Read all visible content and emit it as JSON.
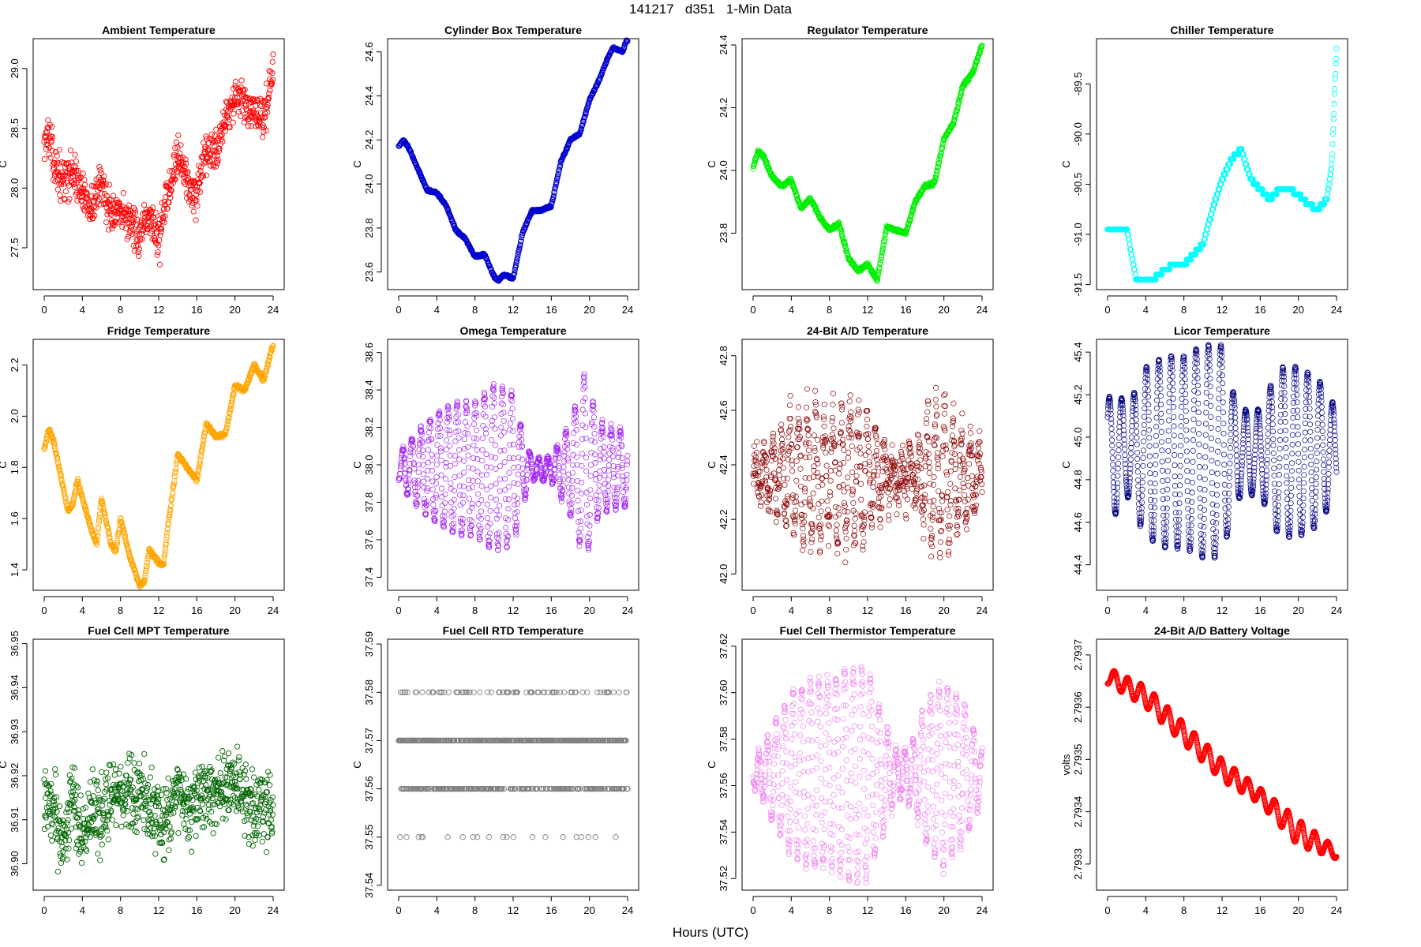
{
  "figure": {
    "title": "141217   d351   1-Min Data",
    "xlabel": "Hours (UTC)"
  },
  "chart_data": [
    {
      "id": "ambient",
      "type": "scatter",
      "title": "Ambient Temperature",
      "ylabel": "C",
      "color": "#ff0000",
      "xlim": [
        0,
        24
      ],
      "xticks": [
        0,
        4,
        8,
        12,
        16,
        20,
        24
      ],
      "xtick_labels": [
        "0",
        "4",
        "8",
        "12",
        "16",
        "20",
        "24"
      ],
      "ylim": [
        27.15,
        29.25
      ],
      "yticks": [
        27.5,
        28.0,
        28.5,
        29.0
      ],
      "ytick_labels": [
        "27.5",
        "28.0",
        "28.5",
        "29.0"
      ],
      "trend": {
        "x": [
          0,
          0.5,
          1,
          2,
          3,
          4,
          5,
          6,
          7,
          8,
          9,
          10,
          11,
          12,
          13,
          14,
          15,
          16,
          17,
          18,
          19,
          20,
          21,
          22,
          23,
          24
        ],
        "y": [
          28.4,
          28.45,
          28.2,
          28.05,
          28.15,
          27.95,
          27.85,
          28.05,
          27.8,
          27.75,
          27.75,
          27.55,
          27.8,
          27.55,
          28.0,
          28.3,
          28.05,
          27.9,
          28.3,
          28.3,
          28.6,
          28.75,
          28.7,
          28.6,
          28.6,
          28.95
        ]
      },
      "noise": 0.12,
      "npts": 720,
      "marker": "circle"
    },
    {
      "id": "cylbox",
      "type": "scatter",
      "title": "Cylinder Box Temperature",
      "ylabel": "C",
      "color": "#0000cd",
      "xlim": [
        0,
        24
      ],
      "xticks": [
        0,
        4,
        8,
        12,
        16,
        20,
        24
      ],
      "xtick_labels": [
        "0",
        "4",
        "8",
        "12",
        "16",
        "20",
        "24"
      ],
      "ylim": [
        23.52,
        24.66
      ],
      "yticks": [
        23.6,
        23.8,
        24.0,
        24.2,
        24.4,
        24.6
      ],
      "ytick_labels": [
        "23.6",
        "23.8",
        "24.0",
        "24.2",
        "24.4",
        "24.6"
      ],
      "trend": {
        "x": [
          0,
          0.5,
          1,
          2,
          3,
          4,
          5,
          6,
          7,
          8,
          9,
          10,
          10.5,
          11,
          12,
          13,
          14,
          15,
          16,
          17,
          18,
          19,
          20,
          21,
          22,
          22.5,
          23,
          23.5,
          24
        ],
        "y": [
          24.17,
          24.2,
          24.17,
          24.07,
          23.97,
          23.96,
          23.9,
          23.79,
          23.75,
          23.67,
          23.68,
          23.58,
          23.56,
          23.59,
          23.57,
          23.78,
          23.88,
          23.88,
          23.9,
          24.1,
          24.2,
          24.23,
          24.38,
          24.47,
          24.58,
          24.62,
          24.61,
          24.6,
          24.67
        ]
      },
      "noise": 0.004,
      "npts": 900,
      "marker": "circle"
    },
    {
      "id": "regulator",
      "type": "scatter",
      "title": "Regulator Temperature",
      "ylabel": "C",
      "color": "#00ee00",
      "xlim": [
        0,
        24
      ],
      "xticks": [
        0,
        4,
        8,
        12,
        16,
        20,
        24
      ],
      "xtick_labels": [
        "0",
        "4",
        "8",
        "12",
        "16",
        "20",
        "24"
      ],
      "ylim": [
        23.62,
        24.42
      ],
      "yticks": [
        23.8,
        24.0,
        24.2,
        24.4
      ],
      "ytick_labels": [
        "23.8",
        "24.0",
        "24.2",
        "24.4"
      ],
      "trend": {
        "x": [
          0,
          0.5,
          1,
          2,
          3,
          4,
          5,
          6,
          7,
          8,
          9,
          10,
          11,
          12,
          13,
          14,
          15,
          16,
          17,
          18,
          19,
          20,
          21,
          22,
          23,
          24
        ],
        "y": [
          24.01,
          24.06,
          24.05,
          23.98,
          23.95,
          23.97,
          23.88,
          23.91,
          23.85,
          23.81,
          23.83,
          23.72,
          23.68,
          23.7,
          23.65,
          23.82,
          23.81,
          23.8,
          23.9,
          23.95,
          23.96,
          24.1,
          24.15,
          24.27,
          24.31,
          24.4
        ]
      },
      "noise": 0.004,
      "npts": 900,
      "marker": "circle"
    },
    {
      "id": "chiller",
      "type": "scatter",
      "title": "Chiller Temperature",
      "ylabel": "C",
      "color": "#00ffff",
      "xlim": [
        0,
        24
      ],
      "xticks": [
        0,
        4,
        8,
        12,
        16,
        20,
        24
      ],
      "xtick_labels": [
        "0",
        "4",
        "8",
        "12",
        "16",
        "20",
        "24"
      ],
      "ylim": [
        -91.55,
        -89.05
      ],
      "yticks": [
        -91.5,
        -91.0,
        -90.5,
        -90.0,
        -89.5
      ],
      "ytick_labels": [
        "-91.5",
        "-91.0",
        "-90.5",
        "-90.0",
        "-89.5"
      ],
      "trend": {
        "x": [
          0,
          2,
          2.5,
          3,
          4,
          5,
          6,
          7,
          8,
          9,
          10,
          11,
          12,
          13,
          14,
          15,
          16,
          17,
          18,
          19,
          20,
          21,
          22,
          23,
          23.5,
          24
        ],
        "y": [
          -90.93,
          -90.93,
          -91.2,
          -91.45,
          -91.43,
          -91.43,
          -91.35,
          -91.3,
          -91.3,
          -91.2,
          -91.1,
          -90.75,
          -90.45,
          -90.25,
          -90.15,
          -90.45,
          -90.55,
          -90.65,
          -90.55,
          -90.55,
          -90.6,
          -90.7,
          -90.75,
          -90.65,
          -90.3,
          -89.15
        ]
      },
      "noise": 0.0,
      "quant": 0.05,
      "npts": 700,
      "marker": "circle"
    },
    {
      "id": "fridge",
      "type": "scatter",
      "title": "Fridge Temperature",
      "ylabel": "C",
      "color": "#ffa500",
      "xlim": [
        0,
        24
      ],
      "xticks": [
        0,
        4,
        8,
        12,
        16,
        20,
        24
      ],
      "xtick_labels": [
        "0",
        "4",
        "8",
        "12",
        "16",
        "20",
        "24"
      ],
      "ylim": [
        1.32,
        2.3
      ],
      "yticks": [
        1.4,
        1.6,
        1.8,
        2.0,
        2.2
      ],
      "ytick_labels": [
        "1.4",
        "1.6",
        "1.8",
        "2.0",
        "2.2"
      ],
      "trend": {
        "x": [
          0,
          0.5,
          1,
          2,
          2.5,
          3,
          3.5,
          4,
          5,
          5.5,
          6,
          7,
          7.5,
          8,
          9,
          10,
          10.5,
          11,
          12,
          12.5,
          13,
          14,
          15,
          16,
          17,
          18,
          19,
          20,
          21,
          22,
          23,
          24
        ],
        "y": [
          1.87,
          1.95,
          1.9,
          1.72,
          1.63,
          1.66,
          1.75,
          1.68,
          1.55,
          1.5,
          1.68,
          1.5,
          1.47,
          1.6,
          1.45,
          1.34,
          1.35,
          1.48,
          1.43,
          1.42,
          1.58,
          1.85,
          1.8,
          1.75,
          1.97,
          1.92,
          1.93,
          2.12,
          2.1,
          2.2,
          2.14,
          2.28
        ]
      },
      "noise": 0.006,
      "npts": 900,
      "marker": "circle"
    },
    {
      "id": "omega",
      "type": "scatter",
      "title": "Omega Temperature",
      "ylabel": "C",
      "color": "#a020f0",
      "xlim": [
        0,
        24
      ],
      "xticks": [
        0,
        4,
        8,
        12,
        16,
        20,
        24
      ],
      "xtick_labels": [
        "0",
        "4",
        "8",
        "12",
        "16",
        "20",
        "24"
      ],
      "ylim": [
        37.33,
        38.67
      ],
      "yticks": [
        37.4,
        37.6,
        37.8,
        38.0,
        38.2,
        38.4,
        38.6
      ],
      "ytick_labels": [
        "37.4",
        "37.6",
        "37.8",
        "38.0",
        "38.2",
        "38.4",
        "38.6"
      ],
      "trend": {
        "x": [
          0,
          24
        ],
        "y": [
          37.98,
          37.98
        ]
      },
      "osc": {
        "period": 0.95,
        "amps": {
          "x": [
            0,
            2,
            4,
            6,
            8,
            10,
            12,
            13,
            14,
            16,
            18,
            19.5,
            21,
            22,
            24
          ],
          "y": [
            0.08,
            0.2,
            0.3,
            0.35,
            0.35,
            0.45,
            0.4,
            0.2,
            0.05,
            0.06,
            0.25,
            0.5,
            0.25,
            0.22,
            0.2
          ]
        }
      },
      "noise": 0.015,
      "npts": 900,
      "marker": "circle"
    },
    {
      "id": "ad24temp",
      "type": "scatter",
      "title": "24-Bit A/D Temperature",
      "ylabel": "C",
      "color": "#8b0000",
      "xlim": [
        0,
        24
      ],
      "xticks": [
        0,
        4,
        8,
        12,
        16,
        20,
        24
      ],
      "xtick_labels": [
        "0",
        "4",
        "8",
        "12",
        "16",
        "20",
        "24"
      ],
      "ylim": [
        41.94,
        42.86
      ],
      "yticks": [
        42.0,
        42.2,
        42.4,
        42.6,
        42.8
      ],
      "ytick_labels": [
        "42.0",
        "42.2",
        "42.4",
        "42.6",
        "42.8"
      ],
      "trend": {
        "x": [
          0,
          24
        ],
        "y": [
          42.36,
          42.36
        ]
      },
      "osc": {
        "period": 0.9,
        "amps": {
          "x": [
            0,
            2,
            4,
            6,
            8,
            10,
            12,
            14,
            15,
            17,
            18,
            20,
            22,
            24
          ],
          "y": [
            0.05,
            0.1,
            0.2,
            0.25,
            0.2,
            0.25,
            0.2,
            0.06,
            0.06,
            0.06,
            0.2,
            0.25,
            0.15,
            0.1
          ]
        }
      },
      "noise": 0.06,
      "npts": 900,
      "marker": "circle"
    },
    {
      "id": "licor",
      "type": "scatter",
      "title": "Licor Temperature",
      "ylabel": "C",
      "color": "#000080",
      "xlim": [
        0,
        24
      ],
      "xticks": [
        0,
        4,
        8,
        12,
        16,
        20,
        24
      ],
      "xtick_labels": [
        "0",
        "4",
        "8",
        "12",
        "16",
        "20",
        "24"
      ],
      "ylim": [
        44.28,
        45.46
      ],
      "yticks": [
        44.4,
        44.6,
        44.8,
        45.0,
        45.2,
        45.4
      ],
      "ytick_labels": [
        "44.4",
        "44.6",
        "44.8",
        "45.0",
        "45.2",
        "45.4"
      ],
      "trend": {
        "x": [
          0,
          24
        ],
        "y": [
          44.93,
          44.93
        ]
      },
      "osc": {
        "period": 1.3,
        "amps": {
          "x": [
            0,
            1,
            2,
            4,
            6,
            8,
            10,
            12,
            13,
            14,
            16,
            18,
            20,
            22,
            24
          ],
          "y": [
            0.25,
            0.3,
            0.2,
            0.4,
            0.45,
            0.45,
            0.5,
            0.5,
            0.3,
            0.2,
            0.2,
            0.4,
            0.4,
            0.35,
            0.2
          ]
        }
      },
      "noise": 0.003,
      "npts": 1100,
      "marker": "circle"
    },
    {
      "id": "fcmpt",
      "type": "scatter",
      "title": "Fuel Cell MPT Temperature",
      "ylabel": "C",
      "color": "#006400",
      "xlim": [
        0,
        24
      ],
      "xticks": [
        0,
        4,
        8,
        12,
        16,
        20,
        24
      ],
      "xtick_labels": [
        "0",
        "4",
        "8",
        "12",
        "16",
        "20",
        "24"
      ],
      "ylim": [
        36.894,
        36.951
      ],
      "yticks": [
        36.9,
        36.91,
        36.92,
        36.93,
        36.94,
        36.95
      ],
      "ytick_labels": [
        "36.90",
        "36.91",
        "36.92",
        "36.93",
        "36.94",
        "36.95"
      ],
      "trend": {
        "x": [
          0,
          1,
          2,
          3,
          4,
          5,
          6,
          8,
          10,
          12,
          13,
          14,
          15,
          16,
          18,
          20,
          22,
          24
        ],
        "y": [
          36.916,
          36.912,
          36.905,
          36.918,
          36.905,
          36.913,
          36.912,
          36.915,
          36.917,
          36.908,
          36.912,
          36.918,
          36.912,
          36.915,
          36.915,
          36.92,
          36.912,
          36.912
        ]
      },
      "noise": 0.006,
      "npts": 800,
      "marker": "circle"
    },
    {
      "id": "fcrtd",
      "type": "scatter",
      "title": "Fuel Cell RTD Temperature",
      "ylabel": "C",
      "color": "#808080",
      "xlim": [
        0,
        24
      ],
      "xticks": [
        0,
        4,
        8,
        12,
        16,
        20,
        24
      ],
      "xtick_labels": [
        "0",
        "4",
        "8",
        "12",
        "16",
        "20",
        "24"
      ],
      "ylim": [
        37.539,
        37.591
      ],
      "yticks": [
        37.54,
        37.55,
        37.56,
        37.57,
        37.58,
        37.59
      ],
      "ytick_labels": [
        "37.54",
        "37.55",
        "37.56",
        "37.57",
        "37.58",
        "37.59"
      ],
      "trend": {
        "x": [
          0,
          24
        ],
        "y": [
          37.567,
          37.567
        ]
      },
      "noise": 0.009,
      "quant": 0.01,
      "npts": 700,
      "marker": "circle"
    },
    {
      "id": "fcthermistor",
      "type": "scatter",
      "title": "Fuel Cell Thermistor Temperature",
      "ylabel": "C",
      "color": "#ee82ee",
      "xlim": [
        0,
        24
      ],
      "xticks": [
        0,
        4,
        8,
        12,
        16,
        20,
        24
      ],
      "xtick_labels": [
        "0",
        "4",
        "8",
        "12",
        "16",
        "20",
        "24"
      ],
      "ylim": [
        37.515,
        37.623
      ],
      "yticks": [
        37.52,
        37.54,
        37.56,
        37.58,
        37.6,
        37.62
      ],
      "ytick_labels": [
        "37.52",
        "37.54",
        "37.56",
        "37.58",
        "37.60",
        "37.62"
      ],
      "trend": {
        "x": [
          0,
          24
        ],
        "y": [
          37.565,
          37.565
        ]
      },
      "osc": {
        "period": 0.9,
        "amps": {
          "x": [
            0,
            1,
            2,
            4,
            6,
            8,
            10,
            12,
            14,
            15,
            16,
            17,
            18,
            20,
            22,
            24
          ],
          "y": [
            0.005,
            0.01,
            0.02,
            0.035,
            0.04,
            0.04,
            0.045,
            0.045,
            0.02,
            0.01,
            0.01,
            0.015,
            0.03,
            0.04,
            0.03,
            0.01
          ]
        }
      },
      "noise": 0.002,
      "npts": 900,
      "marker": "circle"
    },
    {
      "id": "adbattery",
      "type": "scatter",
      "title": "24-Bit A/D Battery Voltage",
      "ylabel": "volts",
      "color": "#ff0000",
      "xlim": [
        0,
        24
      ],
      "xticks": [
        0,
        4,
        8,
        12,
        16,
        20,
        24
      ],
      "xtick_labels": [
        "0",
        "4",
        "8",
        "12",
        "16",
        "20",
        "24"
      ],
      "ylim": [
        2.79325,
        2.79373
      ],
      "yticks": [
        2.7933,
        2.7934,
        2.7935,
        2.7936,
        2.7937
      ],
      "ytick_labels": [
        "2.7933",
        "2.7934",
        "2.7935",
        "2.7936",
        "2.7937"
      ],
      "trend": {
        "x": [
          0,
          4,
          8,
          12,
          16,
          20,
          24
        ],
        "y": [
          2.79366,
          2.79362,
          2.79355,
          2.79348,
          2.79343,
          2.79336,
          2.79332
        ]
      },
      "osc": {
        "period": 1.4,
        "amps": {
          "x": [
            0,
            4,
            8,
            12,
            16,
            20,
            24
          ],
          "y": [
            1.5e-05,
            2e-05,
            2e-05,
            2e-05,
            1.5e-05,
            2.5e-05,
            1e-05
          ]
        }
      },
      "noise": 5e-07,
      "npts": 1100,
      "marker": "circle"
    }
  ]
}
